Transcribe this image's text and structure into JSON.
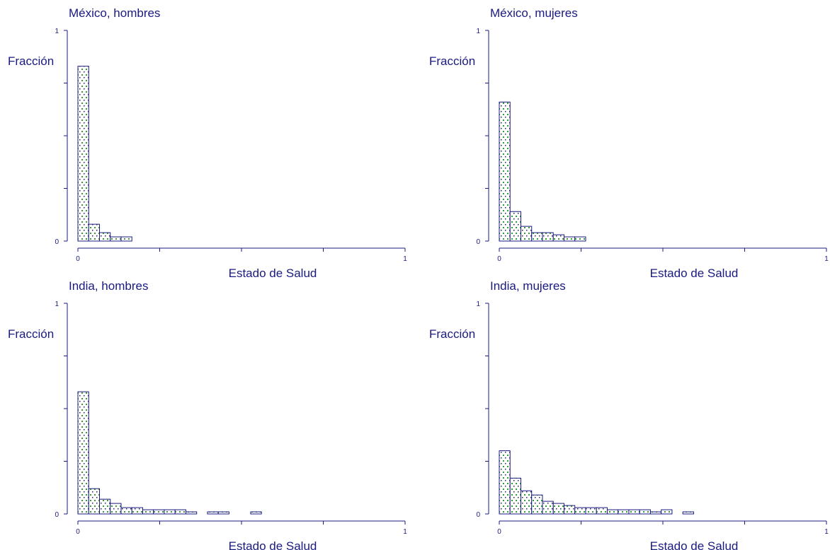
{
  "chart_data": [
    {
      "type": "bar",
      "title": "México, hombres",
      "xlabel": "Estado de Salud",
      "ylabel": "Fracción",
      "x_ticks": [
        "0",
        "1"
      ],
      "y_ticks": [
        "0",
        "1"
      ],
      "xlim": [
        0,
        1
      ],
      "ylim": [
        0,
        1
      ],
      "bin_width": 0.033,
      "bins_start": [
        0,
        0.033,
        0.066,
        0.099,
        0.132
      ],
      "values": [
        0.83,
        0.08,
        0.04,
        0.02,
        0.02
      ]
    },
    {
      "type": "bar",
      "title": "México, mujeres",
      "xlabel": "Estado de Salud",
      "ylabel": "Fracción",
      "x_ticks": [
        "0",
        "1"
      ],
      "y_ticks": [
        "0",
        "1"
      ],
      "xlim": [
        0,
        1
      ],
      "ylim": [
        0,
        1
      ],
      "bin_width": 0.033,
      "bins_start": [
        0,
        0.033,
        0.066,
        0.099,
        0.132,
        0.165,
        0.198,
        0.231
      ],
      "values": [
        0.66,
        0.14,
        0.07,
        0.04,
        0.04,
        0.03,
        0.02,
        0.02
      ]
    },
    {
      "type": "bar",
      "title": "India, hombres",
      "xlabel": "Estado de Salud",
      "ylabel": "Fracción",
      "x_ticks": [
        "0",
        "1"
      ],
      "y_ticks": [
        "0",
        "1"
      ],
      "xlim": [
        0,
        1
      ],
      "ylim": [
        0,
        1
      ],
      "bin_width": 0.033,
      "bins_start": [
        0,
        0.033,
        0.066,
        0.099,
        0.132,
        0.165,
        0.198,
        0.231,
        0.264,
        0.297,
        0.33,
        0.396,
        0.429,
        0.528
      ],
      "values": [
        0.58,
        0.12,
        0.07,
        0.05,
        0.03,
        0.03,
        0.02,
        0.02,
        0.02,
        0.02,
        0.01,
        0.01,
        0.01,
        0.01
      ]
    },
    {
      "type": "bar",
      "title": "India, mujeres",
      "xlabel": "Estado de Salud",
      "ylabel": "Fracción",
      "x_ticks": [
        "0",
        "1"
      ],
      "y_ticks": [
        "0",
        "1"
      ],
      "xlim": [
        0,
        1
      ],
      "ylim": [
        0,
        1
      ],
      "bin_width": 0.033,
      "bins_start": [
        0,
        0.033,
        0.066,
        0.099,
        0.132,
        0.165,
        0.198,
        0.231,
        0.264,
        0.297,
        0.33,
        0.363,
        0.396,
        0.429,
        0.462,
        0.495,
        0.561
      ],
      "values": [
        0.3,
        0.17,
        0.11,
        0.09,
        0.06,
        0.05,
        0.04,
        0.03,
        0.03,
        0.03,
        0.02,
        0.02,
        0.02,
        0.02,
        0.01,
        0.02,
        0.01
      ]
    }
  ]
}
